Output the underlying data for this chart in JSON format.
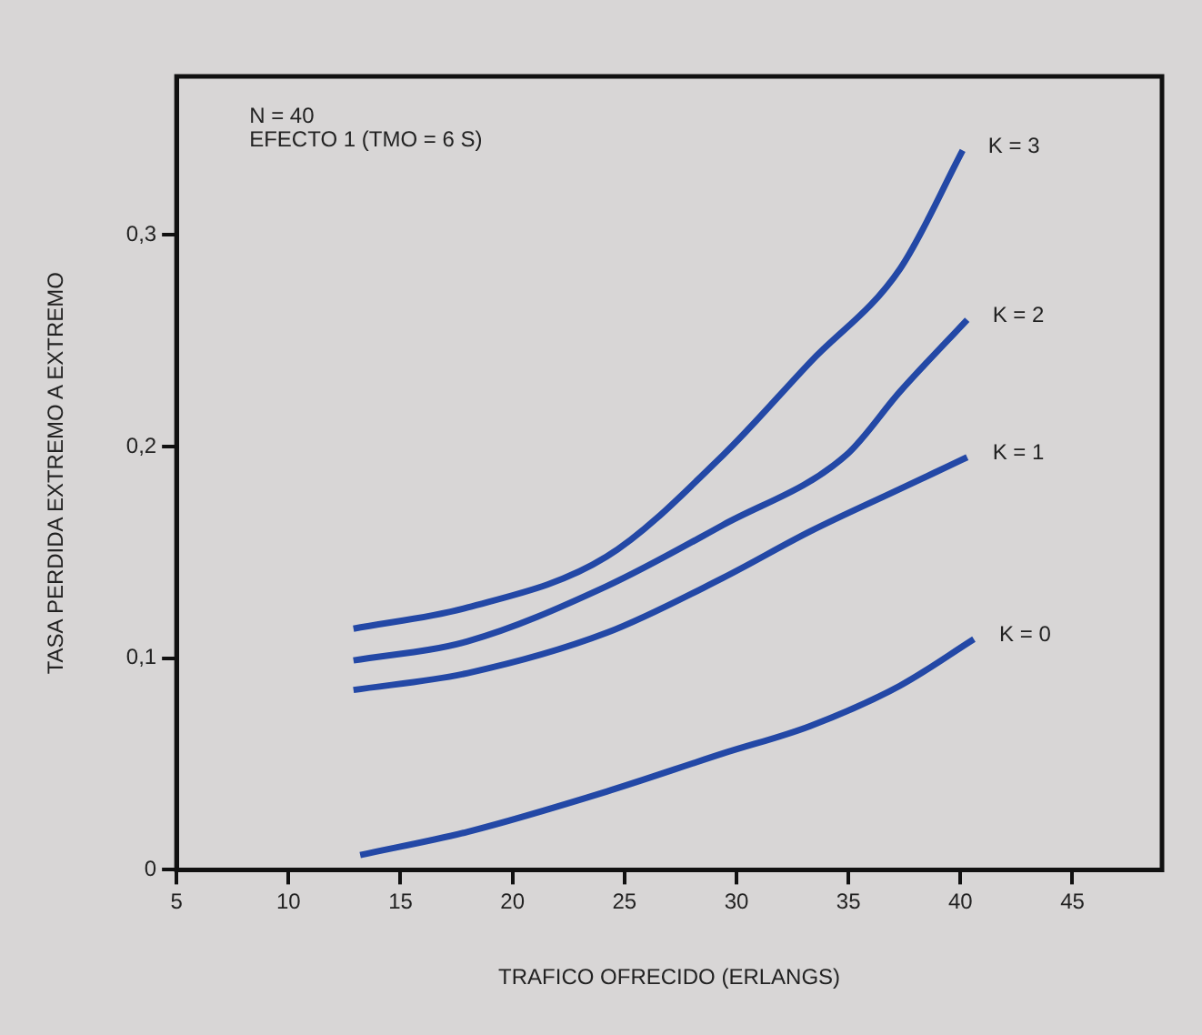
{
  "chart_data": {
    "type": "line",
    "xlabel": "TRAFICO OFRECIDO (ERLANGS)",
    "ylabel": "TASA PERDIDA EXTREMO A EXTREMO",
    "annotations": [
      "N = 40",
      "EFECTO 1 (TMO = 6 S)"
    ],
    "xlim": [
      5,
      49
    ],
    "xticks": [
      5,
      10,
      15,
      20,
      25,
      30,
      35,
      40,
      45
    ],
    "ylim": [
      0,
      0.375
    ],
    "yticks": [
      {
        "value": 0,
        "label": "0"
      },
      {
        "value": 0.1,
        "label": "0,1"
      },
      {
        "value": 0.2,
        "label": "0,2"
      },
      {
        "value": 0.3,
        "label": "0,3"
      }
    ],
    "grid": false,
    "legend": false,
    "marker": "none",
    "line_style": "solid",
    "series": [
      {
        "name": "K = 3",
        "color": "#2348a6",
        "x": [
          12.9,
          18,
          24.2,
          29.4,
          33.3,
          37.3,
          40.1
        ],
        "values": [
          0.114,
          0.124,
          0.148,
          0.196,
          0.24,
          0.284,
          0.34
        ]
      },
      {
        "name": "K = 2",
        "color": "#2348a6",
        "x": [
          12.9,
          18,
          24.2,
          29.4,
          34.9,
          37.3,
          40.3
        ],
        "values": [
          0.099,
          0.108,
          0.134,
          0.163,
          0.196,
          0.226,
          0.26
        ]
      },
      {
        "name": "K = 1",
        "color": "#2348a6",
        "x": [
          12.9,
          18,
          24.2,
          29.4,
          33.3,
          37.3,
          40.3
        ],
        "values": [
          0.085,
          0.093,
          0.112,
          0.138,
          0.16,
          0.18,
          0.195
        ]
      },
      {
        "name": "K = 0",
        "color": "#2348a6",
        "x": [
          13.2,
          18,
          24.2,
          29.4,
          33.3,
          37.3,
          40.6
        ],
        "values": [
          0.007,
          0.018,
          0.037,
          0.055,
          0.068,
          0.087,
          0.109
        ]
      }
    ]
  }
}
